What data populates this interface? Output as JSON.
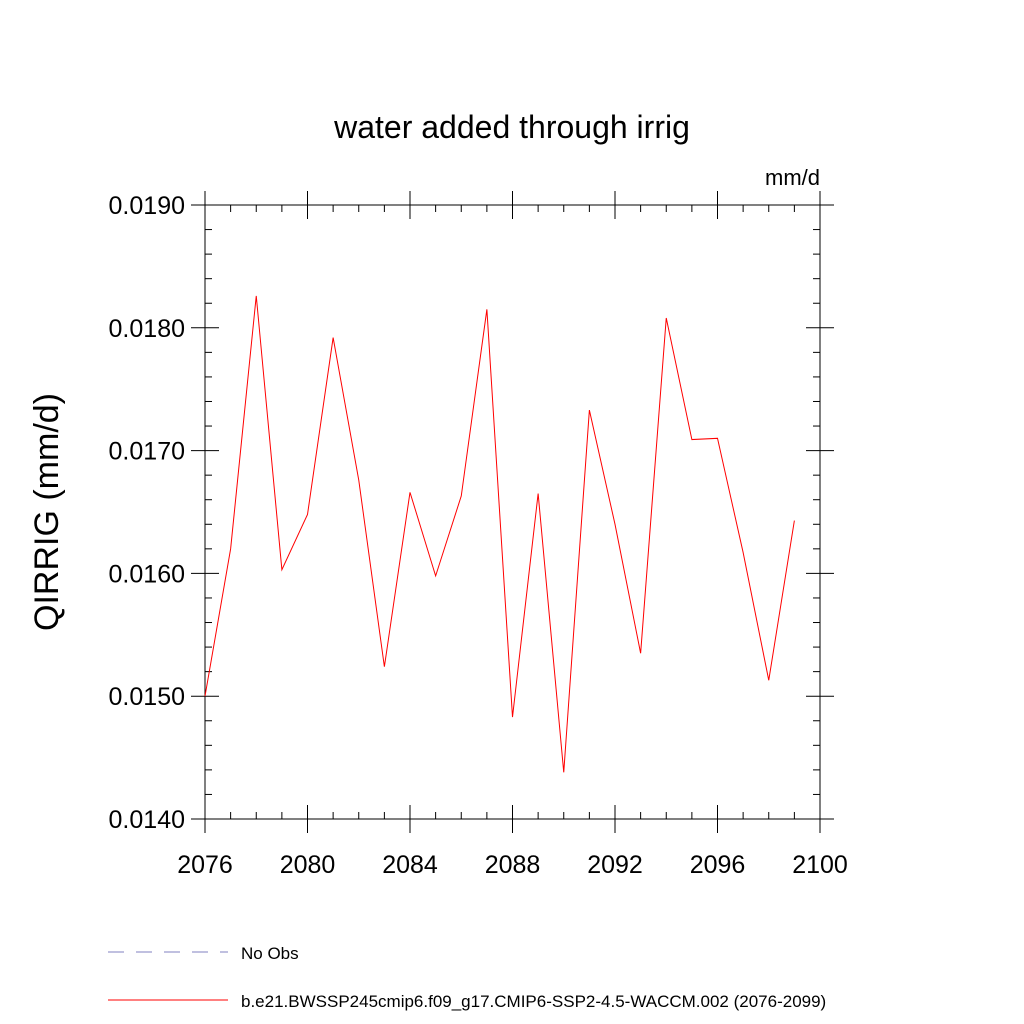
{
  "chart_data": {
    "type": "line",
    "title": "water added through irrig",
    "units": "mm/d",
    "xlabel": "",
    "ylabel": "QIRRIG  (mm/d)",
    "xlim": [
      2076,
      2100
    ],
    "ylim": [
      0.014,
      0.019
    ],
    "x_ticks": [
      2076,
      2080,
      2084,
      2088,
      2092,
      2096,
      2100
    ],
    "x_tick_labels": [
      "2076",
      "2080",
      "2084",
      "2088",
      "2092",
      "2096",
      "2100"
    ],
    "y_ticks": [
      0.014,
      0.015,
      0.016,
      0.017,
      0.018,
      0.019
    ],
    "y_tick_labels": [
      "0.0140",
      "0.0150",
      "0.0160",
      "0.0170",
      "0.0180",
      "0.0190"
    ],
    "series": [
      {
        "name": "b.e21.BWSSP245cmip6.f09_g17.CMIP6-SSP2-4.5-WACCM.002 (2076-2099)",
        "color": "#ff0000",
        "style": "solid",
        "x": [
          2076,
          2077,
          2078,
          2079,
          2080,
          2081,
          2082,
          2083,
          2084,
          2085,
          2086,
          2087,
          2088,
          2089,
          2090,
          2091,
          2092,
          2093,
          2094,
          2095,
          2096,
          2097,
          2098,
          2099
        ],
        "values": [
          0.015,
          0.0162,
          0.01826,
          0.01603,
          0.01648,
          0.01792,
          0.01676,
          0.01524,
          0.01666,
          0.01598,
          0.01663,
          0.01815,
          0.01483,
          0.01665,
          0.01438,
          0.01733,
          0.0164,
          0.01535,
          0.01808,
          0.01709,
          0.0171,
          0.01617,
          0.01513,
          0.01643
        ]
      }
    ],
    "legend": [
      {
        "label": "No Obs",
        "color": "#8080c0",
        "style": "dashed"
      },
      {
        "label": "b.e21.BWSSP245cmip6.f09_g17.CMIP6-SSP2-4.5-WACCM.002 (2076-2099)",
        "color": "#ff0000",
        "style": "solid"
      }
    ],
    "legend_position": "bottom"
  }
}
